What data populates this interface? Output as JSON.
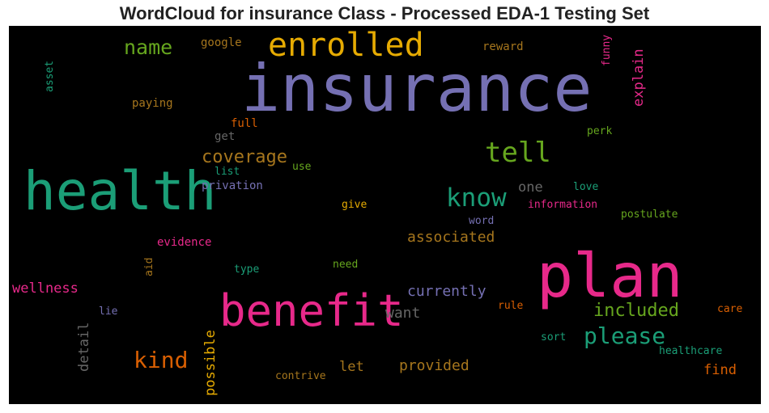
{
  "chart_data": {
    "type": "wordcloud",
    "title": "WordCloud for insurance Class - Processed EDA-1 Testing Set",
    "background": "#000000",
    "words": [
      {
        "text": "insurance",
        "color": "#7570b3"
      },
      {
        "text": "health",
        "color": "#1b9e77"
      },
      {
        "text": "plan",
        "color": "#e7298a"
      },
      {
        "text": "benefit",
        "color": "#e7298a"
      },
      {
        "text": "enrolled",
        "color": "#e6ab02"
      },
      {
        "text": "tell",
        "color": "#66a61e"
      },
      {
        "text": "know",
        "color": "#1b9e77"
      },
      {
        "text": "kind",
        "color": "#d95f02"
      },
      {
        "text": "please",
        "color": "#1b9e77"
      },
      {
        "text": "name",
        "color": "#66a61e"
      },
      {
        "text": "coverage",
        "color": "#a6761d"
      },
      {
        "text": "included",
        "color": "#66a61e"
      },
      {
        "text": "associated",
        "color": "#a6761d"
      },
      {
        "text": "currently",
        "color": "#7570b3"
      },
      {
        "text": "want",
        "color": "#666666"
      },
      {
        "text": "provided",
        "color": "#a6761d"
      },
      {
        "text": "wellness",
        "color": "#e7298a"
      },
      {
        "text": "explain",
        "color": "#e7298a"
      },
      {
        "text": "detail",
        "color": "#666666"
      },
      {
        "text": "possible",
        "color": "#e6ab02"
      },
      {
        "text": "find",
        "color": "#d95f02"
      },
      {
        "text": "one",
        "color": "#666666"
      },
      {
        "text": "let",
        "color": "#a6761d"
      },
      {
        "text": "google",
        "color": "#a6761d"
      },
      {
        "text": "reward",
        "color": "#a6761d"
      },
      {
        "text": "funny",
        "color": "#e7298a"
      },
      {
        "text": "asset",
        "color": "#1b9e77"
      },
      {
        "text": "paying",
        "color": "#a6761d"
      },
      {
        "text": "full",
        "color": "#d95f02"
      },
      {
        "text": "get",
        "color": "#666666"
      },
      {
        "text": "perk",
        "color": "#66a61e"
      },
      {
        "text": "use",
        "color": "#66a61e"
      },
      {
        "text": "list",
        "color": "#1b9e77"
      },
      {
        "text": "privation",
        "color": "#7570b3"
      },
      {
        "text": "love",
        "color": "#1b9e77"
      },
      {
        "text": "give",
        "color": "#e6ab02"
      },
      {
        "text": "information",
        "color": "#e7298a"
      },
      {
        "text": "word",
        "color": "#7570b3"
      },
      {
        "text": "postulate",
        "color": "#66a61e"
      },
      {
        "text": "evidence",
        "color": "#e7298a"
      },
      {
        "text": "aid",
        "color": "#a6761d"
      },
      {
        "text": "type",
        "color": "#1b9e77"
      },
      {
        "text": "need",
        "color": "#66a61e"
      },
      {
        "text": "lie",
        "color": "#7570b3"
      },
      {
        "text": "rule",
        "color": "#d95f02"
      },
      {
        "text": "care",
        "color": "#d95f02"
      },
      {
        "text": "sort",
        "color": "#1b9e77"
      },
      {
        "text": "healthcare",
        "color": "#1b9e77"
      },
      {
        "text": "contrive",
        "color": "#a6761d"
      }
    ]
  }
}
